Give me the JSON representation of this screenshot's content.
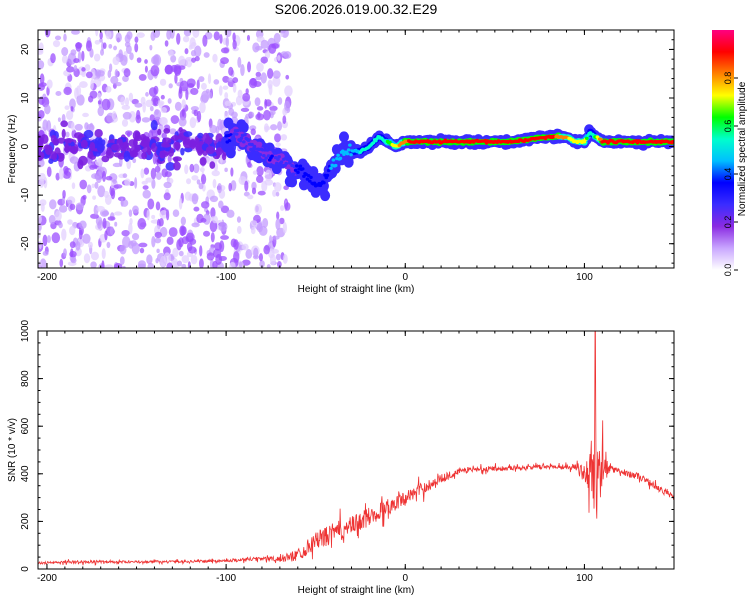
{
  "title": "S206.2026.019.00.32.E29",
  "chart_data": [
    {
      "type": "heatmap",
      "title": "S206.2026.019.00.32.E29",
      "xlabel": "Height of straight line (km)",
      "ylabel": "Frequency (Hz)",
      "xlim": [
        -205,
        150
      ],
      "ylim": [
        -25,
        24
      ],
      "xticks": [
        -200,
        -100,
        0,
        100
      ],
      "yticks": [
        -20,
        -10,
        0,
        10,
        20
      ],
      "colorbar": {
        "label": "Normalized spectral amplitude",
        "range": [
          0,
          1
        ],
        "ticks": [
          "0.0",
          "0.2",
          "0.4",
          "0.6",
          "0.8"
        ],
        "colormap": [
          "#ffffff",
          "#c9a6ff",
          "#8a2be2",
          "#3b2cff",
          "#0000ff",
          "#00bfff",
          "#00ffcc",
          "#00ff00",
          "#ffff00",
          "#ff8000",
          "#ff0000",
          "#ff0080"
        ]
      },
      "ridge": {
        "x": [
          -100,
          -95,
          -85,
          -75,
          -65,
          -55,
          -50,
          -45,
          -40,
          -35,
          -30,
          -25,
          -20,
          -15,
          -10,
          -5,
          0,
          5,
          10,
          20,
          40,
          60,
          80,
          90,
          95,
          100,
          103,
          106,
          110,
          130,
          150
        ],
        "freq": [
          1,
          3,
          0,
          -2,
          -4,
          -6,
          -8,
          -7,
          -3,
          -1,
          -1,
          -1,
          0,
          2,
          1,
          0,
          1,
          1,
          1,
          1,
          1,
          1,
          2,
          2,
          1,
          1,
          3,
          2,
          1,
          1,
          1
        ],
        "amplitude": [
          0.35,
          0.3,
          0.3,
          0.32,
          0.3,
          0.35,
          0.35,
          0.35,
          0.45,
          0.45,
          0.45,
          0.5,
          0.55,
          0.5,
          0.6,
          0.75,
          0.85,
          0.9,
          0.9,
          0.95,
          0.95,
          0.95,
          0.9,
          0.8,
          0.7,
          0.75,
          0.5,
          0.6,
          0.9,
          0.95,
          0.95
        ]
      }
    },
    {
      "type": "line",
      "xlabel": "Height of straight line (km)",
      "ylabel": "SNR (10 * v/v)",
      "xlim": [
        -205,
        150
      ],
      "ylim": [
        0,
        1000
      ],
      "xticks": [
        -200,
        -100,
        0,
        100
      ],
      "yticks": [
        0,
        200,
        400,
        600,
        800,
        1000
      ],
      "color": "#ee3333",
      "envelope": {
        "x": [
          -205,
          -180,
          -150,
          -120,
          -100,
          -80,
          -70,
          -60,
          -50,
          -40,
          -30,
          -20,
          -10,
          0,
          10,
          20,
          30,
          40,
          60,
          80,
          95,
          100,
          103,
          106,
          108,
          110,
          115,
          130,
          150
        ],
        "mean": [
          25,
          30,
          30,
          32,
          35,
          45,
          40,
          60,
          120,
          150,
          180,
          220,
          260,
          300,
          340,
          380,
          410,
          420,
          425,
          430,
          430,
          400,
          420,
          430,
          410,
          420,
          420,
          390,
          300
        ],
        "spread": [
          10,
          15,
          10,
          10,
          12,
          20,
          25,
          60,
          80,
          100,
          90,
          90,
          80,
          60,
          60,
          40,
          30,
          25,
          20,
          20,
          25,
          80,
          200,
          500,
          200,
          250,
          30,
          30,
          30
        ]
      },
      "peak": {
        "x": 106,
        "y": 1000
      }
    }
  ]
}
